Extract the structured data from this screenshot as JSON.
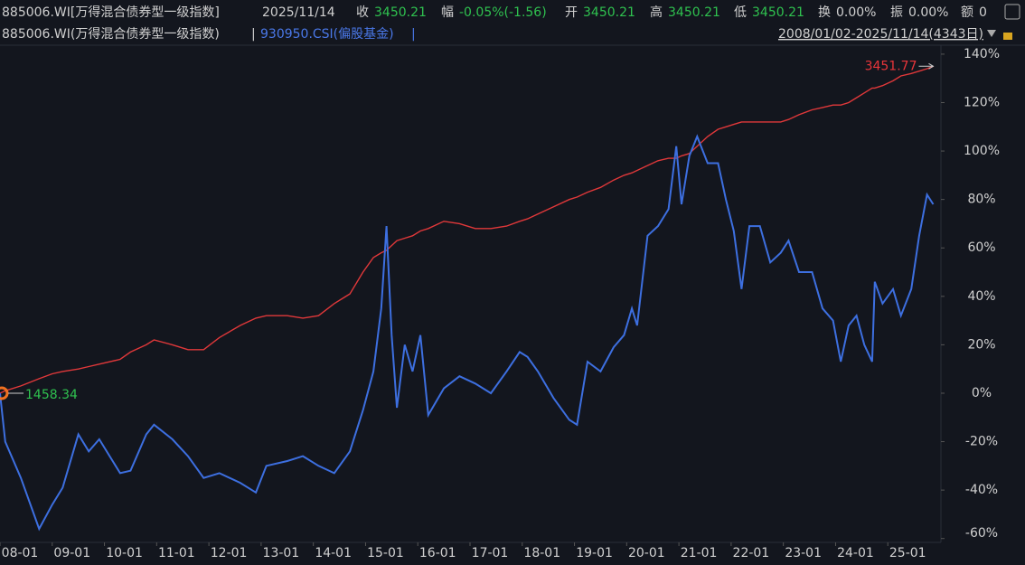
{
  "header": {
    "name": "885006.WI[万得混合债券型一级指数]",
    "date": "2025/11/14",
    "close_label": "收",
    "close": "3450.21",
    "change_label": "幅",
    "change": "-0.05%(-1.56)",
    "open_label": "开",
    "open": "3450.21",
    "high_label": "高",
    "high": "3450.21",
    "low_label": "低",
    "low": "3450.21",
    "turnover_label": "换",
    "turnover": "0.00%",
    "amplitude_label": "振",
    "amplitude": "0.00%",
    "amount_label": "额",
    "amount": "0",
    "separator": "|",
    "range": "2008/01/02-2025/11/14(4343日)"
  },
  "chart_data": {
    "type": "line",
    "max_label": "3451.77",
    "min_label": "1458.34",
    "x": [
      2008,
      2008.1,
      2008.4,
      2008.75,
      2009,
      2009.2,
      2009.5,
      2009.7,
      2009.9,
      2010.3,
      2010.5,
      2010.8,
      2010.95,
      2011.3,
      2011.6,
      2011.9,
      2012.2,
      2012.6,
      2012.9,
      2013.1,
      2013.5,
      2013.8,
      2014.1,
      2014.4,
      2014.7,
      2014.95,
      2015.15,
      2015.3,
      2015.4,
      2015.5,
      2015.6,
      2015.75,
      2015.9,
      2016.05,
      2016.2,
      2016.5,
      2016.8,
      2017.1,
      2017.4,
      2017.7,
      2017.95,
      2018.1,
      2018.3,
      2018.6,
      2018.9,
      2019.05,
      2019.25,
      2019.5,
      2019.75,
      2019.95,
      2020.1,
      2020.2,
      2020.4,
      2020.6,
      2020.8,
      2020.95,
      2021.05,
      2021.2,
      2021.35,
      2021.55,
      2021.75,
      2021.9,
      2022.05,
      2022.2,
      2022.35,
      2022.55,
      2022.75,
      2022.95,
      2023.1,
      2023.3,
      2023.55,
      2023.75,
      2023.95,
      2024.1,
      2024.25,
      2024.4,
      2024.55,
      2024.7,
      2024.75,
      2024.9,
      2025.1,
      2025.25,
      2025.45,
      2025.6,
      2025.75,
      2025.87
    ],
    "series": [
      {
        "name": "885006.WI(万得混合债券型一级指数)",
        "color": "#e0383a",
        "values": [
          0,
          1,
          3,
          6,
          8,
          9,
          10,
          11,
          12,
          14,
          17,
          20,
          22,
          20,
          18,
          18,
          23,
          28,
          31,
          32,
          32,
          31,
          32,
          37,
          41,
          50,
          56,
          58,
          59,
          61,
          63,
          64,
          65,
          67,
          68,
          71,
          70,
          68,
          68,
          69,
          71,
          72,
          74,
          77,
          80,
          81,
          83,
          85,
          88,
          90,
          91,
          92,
          94,
          96,
          97,
          97,
          98,
          99,
          102,
          106,
          109,
          110,
          111,
          112,
          112,
          112,
          112,
          112,
          113,
          115,
          117,
          118,
          119,
          119,
          120,
          122,
          124,
          126,
          126,
          127,
          129,
          131,
          132,
          133,
          134,
          135
        ]
      },
      {
        "name": "930950.CSI(偏股基金)",
        "color": "#3d6fe0",
        "values": [
          0,
          -20,
          -35,
          -56,
          -46,
          -39,
          -17,
          -24,
          -19,
          -33,
          -32,
          -17,
          -13,
          -19,
          -26,
          -35,
          -33,
          -37,
          -41,
          -30,
          -28,
          -26,
          -30,
          -33,
          -24,
          -7,
          9,
          35,
          69,
          24,
          -6,
          20,
          9,
          24,
          -9,
          2,
          7,
          4,
          0,
          9,
          17,
          15,
          9,
          -2,
          -11,
          -13,
          13,
          9,
          19,
          24,
          35,
          28,
          65,
          69,
          76,
          102,
          78,
          98,
          106,
          95,
          95,
          80,
          67,
          43,
          69,
          69,
          54,
          58,
          63,
          50,
          50,
          35,
          30,
          13,
          28,
          32,
          20,
          13,
          46,
          37,
          43,
          32,
          43,
          65,
          82,
          78
        ]
      }
    ],
    "xlim": [
      2008,
      2026
    ],
    "xticks": [
      {
        "value": 2008,
        "label": "08-01"
      },
      {
        "value": 2009,
        "label": "09-01"
      },
      {
        "value": 2010,
        "label": "10-01"
      },
      {
        "value": 2011,
        "label": "11-01"
      },
      {
        "value": 2012,
        "label": "12-01"
      },
      {
        "value": 2013,
        "label": "13-01"
      },
      {
        "value": 2014,
        "label": "14-01"
      },
      {
        "value": 2015,
        "label": "15-01"
      },
      {
        "value": 2016,
        "label": "16-01"
      },
      {
        "value": 2017,
        "label": "17-01"
      },
      {
        "value": 2018,
        "label": "18-01"
      },
      {
        "value": 2019,
        "label": "19-01"
      },
      {
        "value": 2020,
        "label": "20-01"
      },
      {
        "value": 2021,
        "label": "21-01"
      },
      {
        "value": 2022,
        "label": "22-01"
      },
      {
        "value": 2023,
        "label": "23-01"
      },
      {
        "value": 2024,
        "label": "24-01"
      },
      {
        "value": 2025,
        "label": "25-01"
      }
    ],
    "ylim": [
      -61.6,
      143.7
    ],
    "yticks": [
      {
        "value": 140,
        "label": "140%"
      },
      {
        "value": 120,
        "label": "120%"
      },
      {
        "value": 100,
        "label": "100%"
      },
      {
        "value": 80,
        "label": "80%"
      },
      {
        "value": 60,
        "label": "60%"
      },
      {
        "value": 40,
        "label": "40%"
      },
      {
        "value": 20,
        "label": "20%"
      },
      {
        "value": 0,
        "label": "0%"
      },
      {
        "value": -20,
        "label": "-20%"
      },
      {
        "value": -40,
        "label": "-40%"
      },
      {
        "value": -60,
        "label": "-60%"
      }
    ],
    "grid": false
  }
}
